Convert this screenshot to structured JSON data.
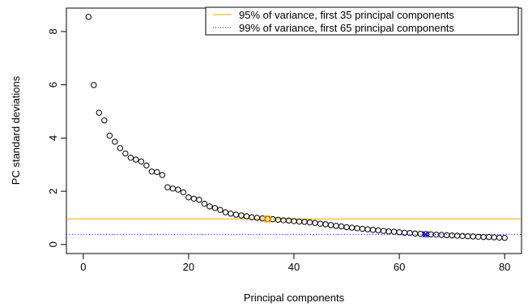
{
  "chart_data": {
    "type": "scatter",
    "xlabel": "Principal components",
    "ylabel": "PC standard deviations",
    "xlim": [
      -3.2,
      83.2
    ],
    "ylim": [
      -0.34,
      8.88
    ],
    "x_ticks": [
      0,
      20,
      40,
      60,
      80
    ],
    "y_ticks": [
      0,
      2,
      4,
      6,
      8
    ],
    "grid": false,
    "legend_position": "top-right",
    "series": [
      {
        "x": [
          1,
          2,
          3,
          4,
          5,
          6,
          7,
          8,
          9,
          10,
          11,
          12,
          13,
          14,
          15,
          16,
          17,
          18,
          19,
          20,
          21,
          22,
          23,
          24,
          25,
          26,
          27,
          28,
          29,
          30,
          31,
          32,
          33,
          34,
          35,
          36,
          37,
          38,
          39,
          40,
          41,
          42,
          43,
          44,
          45,
          46,
          47,
          48,
          49,
          50,
          51,
          52,
          53,
          54,
          55,
          56,
          57,
          58,
          59,
          60,
          61,
          62,
          63,
          64,
          65,
          66,
          67,
          68,
          69,
          70,
          71,
          72,
          73,
          74,
          75,
          76,
          77,
          78,
          79,
          80
        ],
        "values": [
          8.55,
          5.99,
          4.95,
          4.66,
          4.09,
          3.86,
          3.62,
          3.42,
          3.26,
          3.19,
          3.12,
          2.97,
          2.74,
          2.72,
          2.61,
          2.15,
          2.1,
          2.06,
          1.96,
          1.77,
          1.72,
          1.68,
          1.53,
          1.43,
          1.37,
          1.3,
          1.21,
          1.16,
          1.12,
          1.09,
          1.06,
          1.02,
          1.0,
          0.98,
          0.96,
          0.95,
          0.93,
          0.91,
          0.9,
          0.88,
          0.86,
          0.85,
          0.83,
          0.81,
          0.78,
          0.76,
          0.73,
          0.7,
          0.68,
          0.65,
          0.63,
          0.61,
          0.59,
          0.57,
          0.55,
          0.53,
          0.51,
          0.49,
          0.48,
          0.46,
          0.44,
          0.43,
          0.41,
          0.4,
          0.39,
          0.38,
          0.37,
          0.36,
          0.35,
          0.34,
          0.33,
          0.32,
          0.31,
          0.3,
          0.29,
          0.28,
          0.28,
          0.27,
          0.26,
          0.25
        ],
        "color": "#000000",
        "marker": "open-circle"
      }
    ],
    "reference_lines": [
      {
        "name": "95% of variance, first 35 principal components",
        "y": 0.96,
        "color": "#ffa500",
        "style": "solid",
        "marker_x": 35,
        "marker": "square"
      },
      {
        "name": "99% of variance, first 65 principal components",
        "y": 0.38,
        "color": "#0000ff",
        "style": "dotted",
        "marker_x": 65,
        "marker": "x"
      }
    ]
  }
}
